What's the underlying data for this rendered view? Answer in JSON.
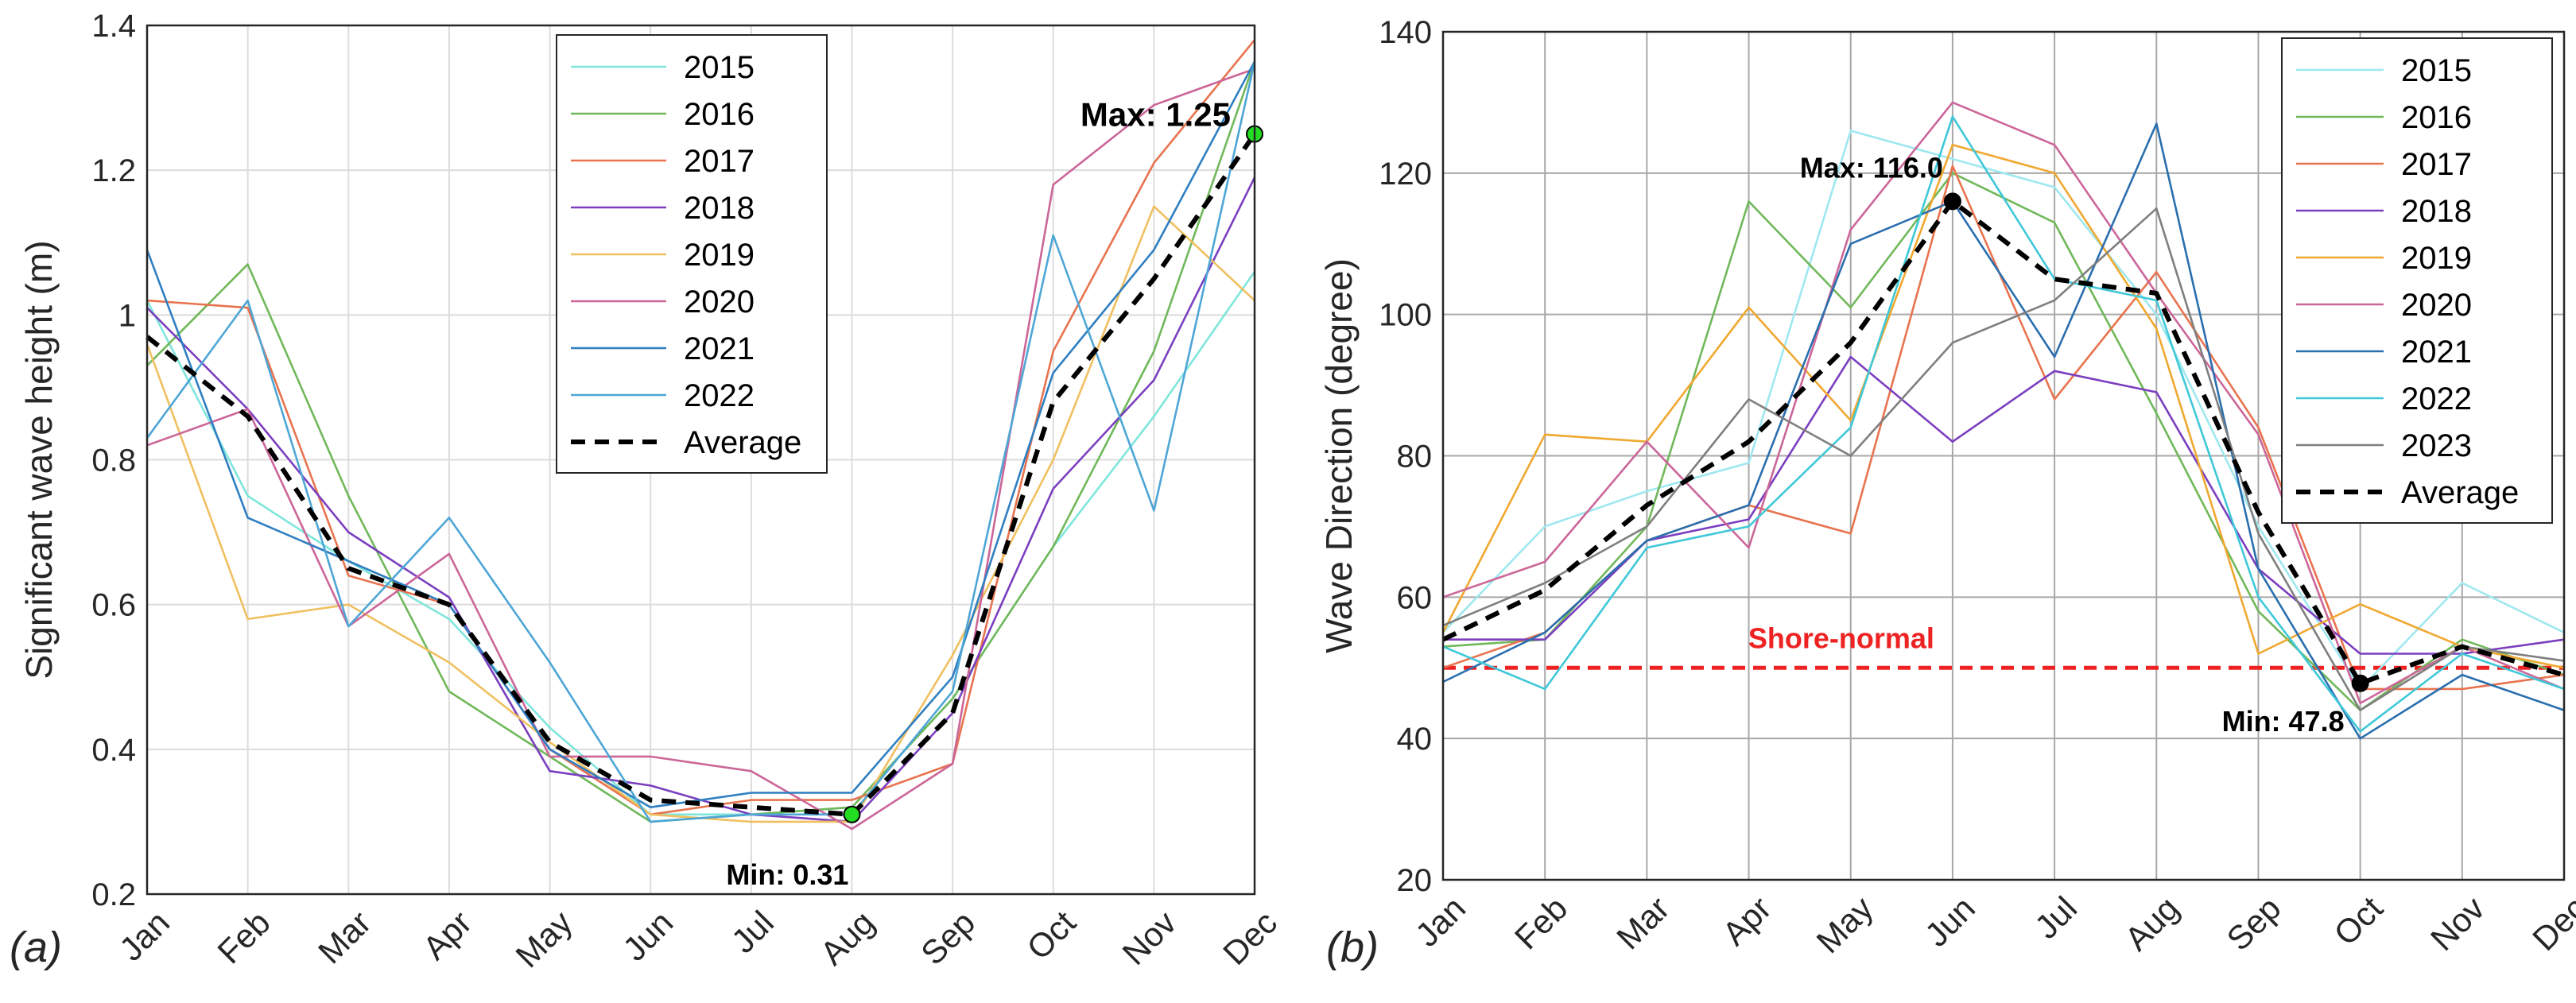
{
  "chart_data": [
    {
      "type": "line",
      "panel_label": "(a)",
      "title": "",
      "xlabel": "",
      "ylabel": "Significant wave height (m)",
      "categories": [
        "Jan",
        "Feb",
        "Mar",
        "Apr",
        "May",
        "Jun",
        "Jul",
        "Aug",
        "Sep",
        "Oct",
        "Nov",
        "Dec"
      ],
      "ylim": [
        0.2,
        1.4
      ],
      "yticks": [
        "0.2",
        "0.4",
        "0.6",
        "0.8",
        "1",
        "1.2",
        "1.4"
      ],
      "grid": true,
      "legend_position": "top-right",
      "series": [
        {
          "name": "2015",
          "color": "#7fe6dc",
          "values": [
            1.02,
            0.75,
            0.66,
            0.58,
            0.43,
            0.31,
            0.31,
            0.32,
            0.47,
            0.68,
            0.86,
            1.06
          ]
        },
        {
          "name": "2016",
          "color": "#70b85a",
          "values": [
            0.93,
            1.07,
            0.75,
            0.48,
            0.39,
            0.3,
            0.31,
            0.32,
            0.47,
            0.68,
            0.95,
            1.35
          ]
        },
        {
          "name": "2017",
          "color": "#e8734f",
          "values": [
            1.02,
            1.01,
            0.64,
            0.6,
            0.4,
            0.31,
            0.33,
            0.33,
            0.38,
            0.95,
            1.21,
            1.38
          ]
        },
        {
          "name": "2018",
          "color": "#7b3fbf",
          "values": [
            1.01,
            0.87,
            0.7,
            0.61,
            0.37,
            0.35,
            0.31,
            0.3,
            0.45,
            0.76,
            0.91,
            1.19
          ]
        },
        {
          "name": "2019",
          "color": "#f0c060",
          "values": [
            0.96,
            0.58,
            0.6,
            0.52,
            0.41,
            0.31,
            0.3,
            0.3,
            0.53,
            0.8,
            1.15,
            1.02
          ]
        },
        {
          "name": "2020",
          "color": "#cc6699",
          "values": [
            0.82,
            0.87,
            0.57,
            0.67,
            0.39,
            0.39,
            0.37,
            0.29,
            0.38,
            1.18,
            1.29,
            1.34
          ]
        },
        {
          "name": "2021",
          "color": "#2f7fc1",
          "values": [
            1.09,
            0.72,
            0.66,
            0.6,
            0.4,
            0.32,
            0.34,
            0.34,
            0.5,
            0.92,
            1.09,
            1.35
          ]
        },
        {
          "name": "2022",
          "color": "#4ea6d6",
          "values": [
            0.83,
            1.02,
            0.57,
            0.72,
            0.52,
            0.3,
            0.31,
            0.31,
            0.48,
            1.11,
            0.73,
            1.35
          ]
        },
        {
          "name": "Average",
          "color": "#000000",
          "dashed": true,
          "values": [
            0.97,
            0.86,
            0.65,
            0.6,
            0.41,
            0.33,
            0.32,
            0.31,
            0.45,
            0.88,
            1.05,
            1.25
          ]
        }
      ],
      "annotations": {
        "max": {
          "label": "Max: 1.25",
          "month": "Dec",
          "value": 1.25,
          "marker_color": "#22dd22"
        },
        "min": {
          "label": "Min: 0.31",
          "month": "Aug",
          "value": 0.31,
          "marker_color": "#22dd22"
        }
      }
    },
    {
      "type": "line",
      "panel_label": "(b)",
      "title": "",
      "xlabel": "",
      "ylabel": "Wave Direction (degree)",
      "categories": [
        "Jan",
        "Feb",
        "Mar",
        "Apr",
        "May",
        "Jun",
        "Jul",
        "Aug",
        "Sep",
        "Oct",
        "Nov",
        "Dec"
      ],
      "ylim": [
        20,
        140
      ],
      "yticks": [
        "20",
        "40",
        "60",
        "80",
        "100",
        "120",
        "140"
      ],
      "grid": true,
      "legend_position": "top-right",
      "reference_line": {
        "label": "Shore-normal",
        "value": 50,
        "color": "#ee2222"
      },
      "series": [
        {
          "name": "2015",
          "color": "#9fe8f0",
          "values": [
            55,
            70,
            75,
            79,
            126,
            122,
            118,
            100,
            70,
            47,
            62,
            55
          ]
        },
        {
          "name": "2016",
          "color": "#70b85a",
          "values": [
            53,
            54,
            70,
            116,
            101,
            120,
            113,
            86,
            58,
            44,
            54,
            49
          ]
        },
        {
          "name": "2017",
          "color": "#e8734f",
          "values": [
            50,
            55,
            68,
            73,
            69,
            121,
            88,
            106,
            84,
            47,
            47,
            49
          ]
        },
        {
          "name": "2018",
          "color": "#7b3fbf",
          "values": [
            54,
            54,
            68,
            71,
            94,
            82,
            92,
            89,
            64,
            52,
            52,
            54
          ]
        },
        {
          "name": "2019",
          "color": "#f0a830",
          "values": [
            55,
            83,
            82,
            101,
            85,
            124,
            120,
            98,
            52,
            59,
            53,
            50
          ]
        },
        {
          "name": "2020",
          "color": "#cc6699",
          "values": [
            60,
            65,
            82,
            67,
            112,
            130,
            124,
            103,
            83,
            45,
            53,
            47
          ]
        },
        {
          "name": "2021",
          "color": "#2a6fae",
          "values": [
            48,
            55,
            68,
            73,
            110,
            116,
            94,
            127,
            64,
            40,
            49,
            44
          ]
        },
        {
          "name": "2022",
          "color": "#3fc8d8",
          "values": [
            53,
            47,
            67,
            70,
            84,
            128,
            105,
            102,
            60,
            41,
            52,
            47
          ]
        },
        {
          "name": "2023",
          "color": "#7f7f7f",
          "values": [
            56,
            62,
            70,
            88,
            80,
            96,
            102,
            115,
            69,
            44,
            53,
            51
          ]
        },
        {
          "name": "Average",
          "color": "#000000",
          "dashed": true,
          "values": [
            54,
            61,
            73,
            82,
            96,
            116,
            105,
            103,
            72,
            47.8,
            53,
            49
          ]
        }
      ],
      "annotations": {
        "max": {
          "label": "Max: 116.0",
          "month": "Jun",
          "value": 116.0,
          "marker_color": "#000000"
        },
        "min": {
          "label": "Min: 47.8",
          "month": "Oct",
          "value": 47.8,
          "marker_color": "#000000"
        }
      }
    }
  ]
}
